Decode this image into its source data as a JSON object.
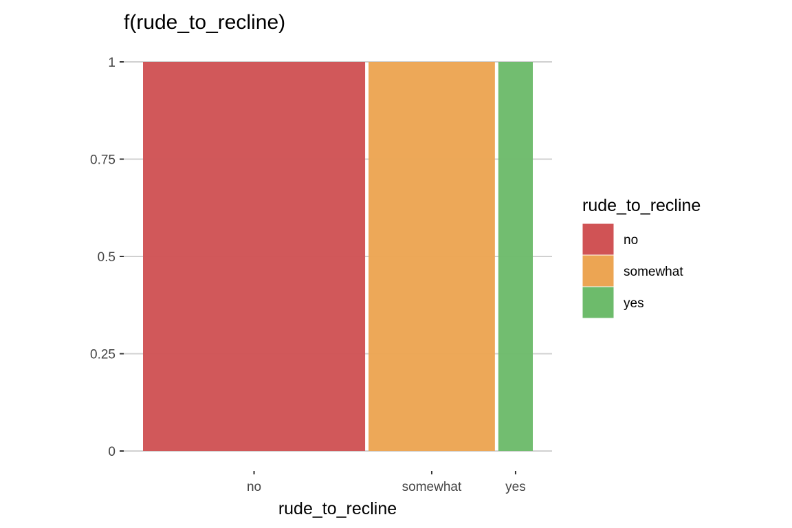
{
  "chart_data": {
    "type": "bar",
    "variant": "proportional-width stacked (mosaic)",
    "title": "f(rude_to_recline)",
    "xlabel": "rude_to_recline",
    "ylabel": "",
    "categories": [
      "no",
      "somewhat",
      "yes"
    ],
    "proportions": [
      0.58,
      0.33,
      0.09
    ],
    "values": [
      1,
      1,
      1
    ],
    "ylim": [
      0,
      1
    ],
    "yticks": [
      "0",
      "0.25",
      "0.5",
      "0.75",
      "1"
    ],
    "ytick_values": [
      0,
      0.25,
      0.5,
      0.75,
      1
    ],
    "grid": true,
    "legend": {
      "title": "rude_to_recline",
      "placement": "right",
      "entries": [
        "no",
        "somewhat",
        "yes"
      ]
    },
    "colors": [
      "#d05355",
      "#eca553",
      "#6dbb6b"
    ]
  }
}
